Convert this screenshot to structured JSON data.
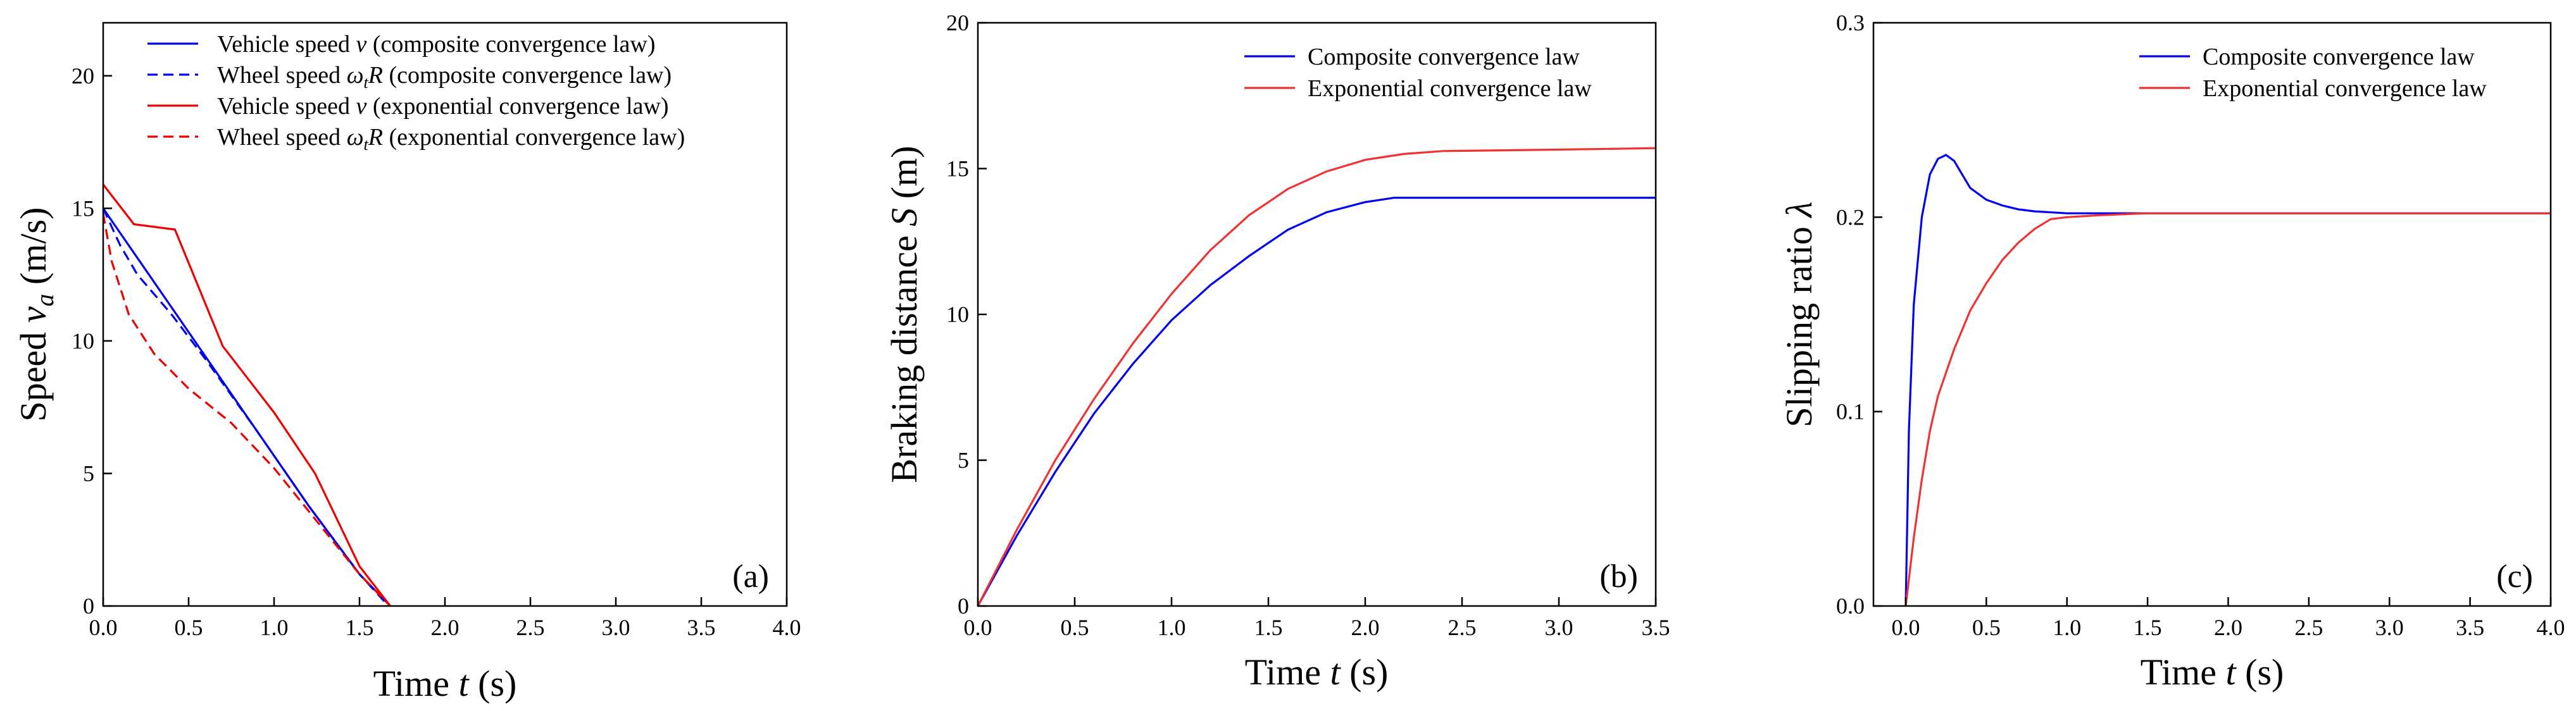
{
  "chart_data": [
    {
      "type": "line",
      "panel_label": "(a)",
      "xlabel": "Time t (s)",
      "ylabel": "Speed v_a (m/s)",
      "xlim": [
        0,
        4.0
      ],
      "ylim": [
        0,
        22
      ],
      "xticks": [
        "0.0",
        "0.5",
        "1.0",
        "1.5",
        "2.0",
        "2.5",
        "3.0",
        "3.5",
        "4.0"
      ],
      "yticks": [
        "0",
        "5",
        "10",
        "15",
        "20"
      ],
      "legend_position": "top-left",
      "series": [
        {
          "name": "Vehicle speed v (composite convergence law)",
          "color": "#0000ee",
          "dash": "solid",
          "x": [
            0,
            0.3,
            0.6,
            0.9,
            1.2,
            1.5,
            1.68
          ],
          "y": [
            15.0,
            12.2,
            9.4,
            6.6,
            3.8,
            1.2,
            0
          ]
        },
        {
          "name": "Wheel speed ωR (composite convergence law)",
          "color": "#0000ee",
          "dash": "dashed",
          "x": [
            0,
            0.1,
            0.2,
            0.4,
            0.6,
            0.9,
            1.2,
            1.5,
            1.67
          ],
          "y": [
            15.0,
            13.6,
            12.5,
            11.0,
            9.3,
            6.6,
            3.8,
            1.2,
            0
          ]
        },
        {
          "name": "Vehicle speed v (exponential convergence law)",
          "color": "#ee0000",
          "dash": "solid",
          "x": [
            0,
            0.18,
            0.42,
            0.7,
            1.0,
            1.24,
            1.5,
            1.68
          ],
          "y": [
            15.9,
            14.4,
            14.2,
            9.8,
            7.3,
            5.0,
            1.5,
            0
          ]
        },
        {
          "name": "Wheel speed ωR (exponential convergence law)",
          "color": "#ee0000",
          "dash": "dashed",
          "x": [
            0,
            0.05,
            0.15,
            0.3,
            0.5,
            0.75,
            1.0,
            1.25,
            1.5,
            1.68
          ],
          "y": [
            14.8,
            13.0,
            11.0,
            9.5,
            8.2,
            6.9,
            5.2,
            3.2,
            1.2,
            0
          ]
        }
      ],
      "legend_entries": [
        {
          "main": "Vehicle speed ",
          "italic": "v",
          "sub": "",
          "rest": " (composite convergence law)"
        },
        {
          "main": "Wheel speed ",
          "italic": "ω",
          "sub": "t",
          "italic2": "R",
          "rest": " (composite convergence law)"
        },
        {
          "main": "Vehicle speed ",
          "italic": "v",
          "sub": "",
          "rest": " (exponential convergence law)"
        },
        {
          "main": "Wheel speed ",
          "italic": "ω",
          "sub": "t",
          "italic2": "R",
          "rest": " (exponential convergence law)"
        }
      ]
    },
    {
      "type": "line",
      "panel_label": "(b)",
      "xlabel": "Time t (s)",
      "ylabel": "Braking distance S (m)",
      "xlim": [
        0,
        3.5
      ],
      "ylim": [
        0,
        20
      ],
      "xticks": [
        "0.0",
        "0.5",
        "1.0",
        "1.5",
        "2.0",
        "2.5",
        "3.0",
        "3.5"
      ],
      "yticks": [
        "0",
        "5",
        "10",
        "15",
        "20"
      ],
      "legend_position": "top-right",
      "series": [
        {
          "name": "Composite convergence law",
          "color": "#0000ee",
          "dash": "solid",
          "x": [
            0,
            0.2,
            0.4,
            0.6,
            0.8,
            1.0,
            1.2,
            1.4,
            1.6,
            1.8,
            2.0,
            2.15,
            2.5,
            3.0,
            3.5
          ],
          "y": [
            0,
            2.4,
            4.6,
            6.6,
            8.3,
            9.8,
            11.0,
            12.0,
            12.9,
            13.5,
            13.85,
            14.0,
            14.0,
            14.0,
            14.0
          ]
        },
        {
          "name": "Exponential convergence law",
          "color": "#ee3333",
          "dash": "solid",
          "x": [
            0,
            0.2,
            0.4,
            0.6,
            0.8,
            1.0,
            1.2,
            1.4,
            1.6,
            1.8,
            2.0,
            2.2,
            2.4,
            3.0,
            3.5
          ],
          "y": [
            0,
            2.6,
            5.0,
            7.1,
            9.0,
            10.7,
            12.2,
            13.4,
            14.3,
            14.9,
            15.3,
            15.5,
            15.6,
            15.65,
            15.7
          ]
        }
      ],
      "legend_entries": [
        {
          "text": "Composite convergence law"
        },
        {
          "text": "Exponential convergence law"
        }
      ]
    },
    {
      "type": "line",
      "panel_label": "(c)",
      "xlabel": "Time t (s)",
      "ylabel": "Slipping ratio λ",
      "xlim": [
        -0.2,
        4.0
      ],
      "ylim": [
        0,
        0.3
      ],
      "xticks": [
        "0.0",
        "0.5",
        "1.0",
        "1.5",
        "2.0",
        "2.5",
        "3.0",
        "3.5",
        "4.0"
      ],
      "xtick_values": [
        0,
        0.5,
        1.0,
        1.5,
        2.0,
        2.5,
        3.0,
        3.5,
        4.0
      ],
      "yticks": [
        "0.0",
        "0.1",
        "0.2",
        "0.3"
      ],
      "legend_position": "top-right",
      "series": [
        {
          "name": "Composite convergence law",
          "color": "#0000ee",
          "dash": "solid",
          "x": [
            0,
            0.02,
            0.05,
            0.1,
            0.15,
            0.2,
            0.25,
            0.3,
            0.35,
            0.4,
            0.5,
            0.6,
            0.7,
            0.8,
            1.0,
            1.5,
            2.0,
            4.0
          ],
          "y": [
            0,
            0.09,
            0.155,
            0.2,
            0.222,
            0.23,
            0.232,
            0.229,
            0.222,
            0.215,
            0.209,
            0.206,
            0.204,
            0.203,
            0.202,
            0.202,
            0.202,
            0.202
          ]
        },
        {
          "name": "Exponential convergence law",
          "color": "#ee3333",
          "dash": "solid",
          "x": [
            0,
            0.05,
            0.1,
            0.15,
            0.2,
            0.3,
            0.4,
            0.5,
            0.6,
            0.7,
            0.8,
            0.9,
            1.0,
            1.2,
            1.5,
            2.0,
            4.0
          ],
          "y": [
            0,
            0.035,
            0.065,
            0.09,
            0.108,
            0.132,
            0.152,
            0.166,
            0.178,
            0.187,
            0.194,
            0.199,
            0.2,
            0.201,
            0.202,
            0.202,
            0.202
          ]
        }
      ],
      "legend_entries": [
        {
          "text": "Composite convergence law"
        },
        {
          "text": "Exponential convergence law"
        }
      ]
    }
  ]
}
